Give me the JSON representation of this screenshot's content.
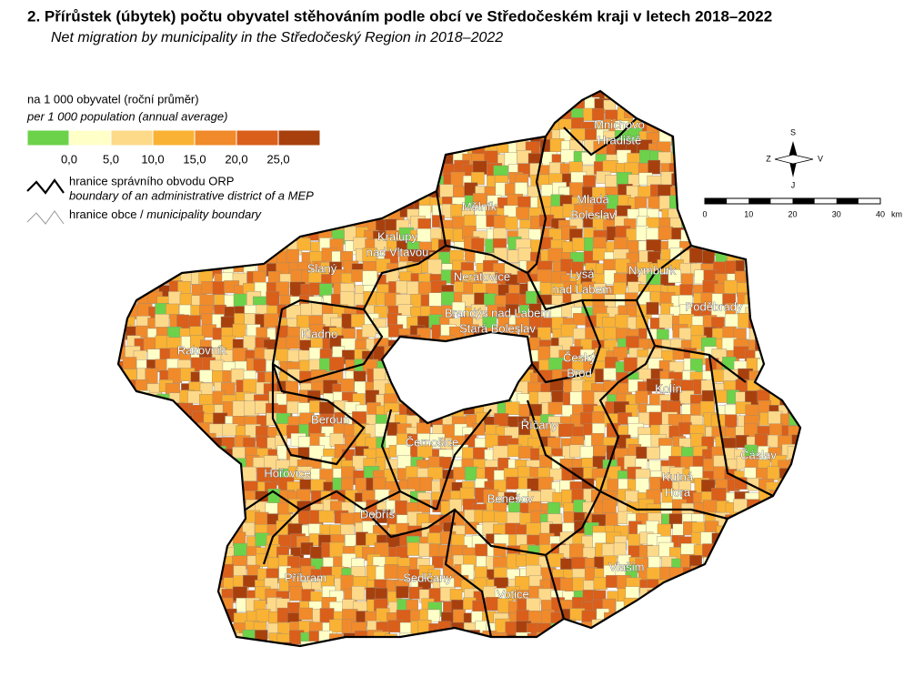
{
  "title": "2. Přírůstek (úbytek) počtu obyvatel stěhováním podle obcí ve Středočeském kraji v letech 2018–2022",
  "subtitle": "Net migration by municipality in the Středočeský Region in 2018–2022",
  "legend": {
    "title": "na 1 000 obyvatel (roční průměr)",
    "title_en": "per 1 000 population (annual average)",
    "colors": [
      "#6cd24a",
      "#ffffc8",
      "#fdd98a",
      "#f9b233",
      "#f08a2a",
      "#d95f1a",
      "#a8400e"
    ],
    "breaks": [
      "0,0",
      "5,0",
      "10,0",
      "15,0",
      "20,0",
      "25,0"
    ],
    "boundary_orp": "hranice správního obvodu ORP",
    "boundary_orp_en": "boundary of an administrative district of a MEP",
    "boundary_municipality": "hranice obce /",
    "boundary_municipality_en": "municipality boundary"
  },
  "scale": {
    "ticks": [
      "0",
      "10",
      "20",
      "30",
      "40"
    ],
    "unit": "km"
  },
  "compass": {
    "north": "S",
    "west": "Z",
    "east": "V",
    "south": "J"
  },
  "districts": [
    {
      "lines": [
        "Mnichovo",
        "Hradiště"
      ]
    },
    {
      "lines": [
        "Mělník"
      ]
    },
    {
      "lines": [
        "Mladá",
        "Boleslav"
      ]
    },
    {
      "lines": [
        "Kralupy",
        "nad Vltavou"
      ]
    },
    {
      "lines": [
        "Slaný"
      ]
    },
    {
      "lines": [
        "Neratovice"
      ]
    },
    {
      "lines": [
        "Lysá",
        "nad Labem"
      ]
    },
    {
      "lines": [
        "Nymburk"
      ]
    },
    {
      "lines": [
        "Brandýs nad Labem",
        "Stará Boleslav"
      ]
    },
    {
      "lines": [
        "Poděbrady"
      ]
    },
    {
      "lines": [
        "Kladno"
      ]
    },
    {
      "lines": [
        "Rakovník"
      ]
    },
    {
      "lines": [
        "Český",
        "Brod"
      ]
    },
    {
      "lines": [
        "Kolín"
      ]
    },
    {
      "lines": [
        "Beroun"
      ]
    },
    {
      "lines": [
        "Říčany"
      ]
    },
    {
      "lines": [
        "Černošice"
      ]
    },
    {
      "lines": [
        "Čáslav"
      ]
    },
    {
      "lines": [
        "Hořovice"
      ]
    },
    {
      "lines": [
        "Kutná",
        "Hora"
      ]
    },
    {
      "lines": [
        "Benešov"
      ]
    },
    {
      "lines": [
        "Dobříš"
      ]
    },
    {
      "lines": [
        "Příbram"
      ]
    },
    {
      "lines": [
        "Vlašim"
      ]
    },
    {
      "lines": [
        "Sedlčany"
      ]
    },
    {
      "lines": [
        "Votice"
      ]
    }
  ]
}
